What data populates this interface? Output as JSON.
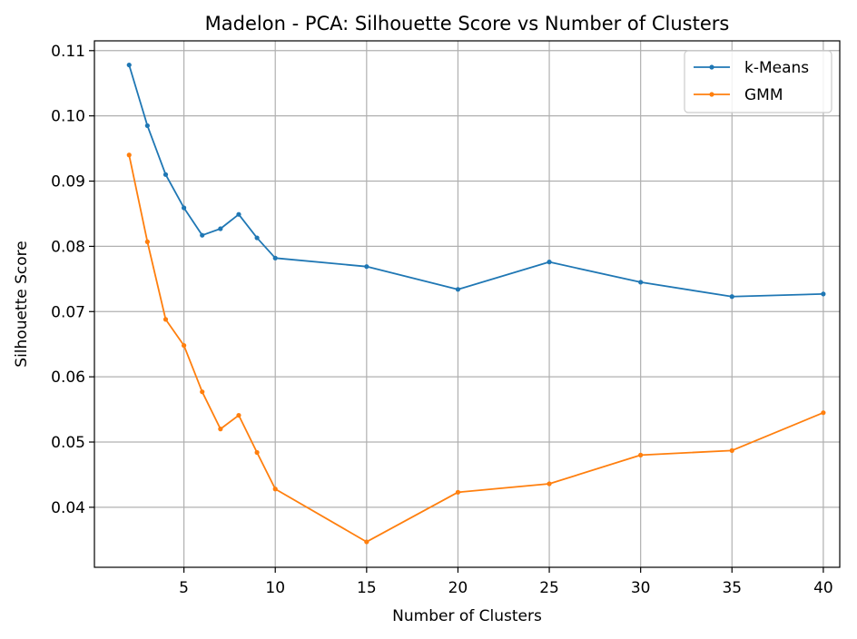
{
  "chart_data": {
    "type": "line",
    "title": "Madelon - PCA: Silhouette Score vs Number of Clusters",
    "xlabel": "Number of Clusters",
    "ylabel": "Silhouette Score",
    "xlim": [
      0.1,
      40.9
    ],
    "ylim": [
      0.0308,
      0.1115
    ],
    "x_ticks": [
      5,
      10,
      15,
      20,
      25,
      30,
      35,
      40
    ],
    "x_tick_labels": [
      "5",
      "10",
      "15",
      "20",
      "25",
      "30",
      "35",
      "40"
    ],
    "y_ticks": [
      0.04,
      0.05,
      0.06,
      0.07,
      0.08,
      0.09,
      0.1,
      0.11
    ],
    "y_tick_labels": [
      "0.04",
      "0.05",
      "0.06",
      "0.07",
      "0.08",
      "0.09",
      "0.10",
      "0.11"
    ],
    "grid": true,
    "legend_position": "top-right",
    "x": [
      2,
      3,
      4,
      5,
      6,
      7,
      8,
      9,
      10,
      15,
      20,
      25,
      30,
      35,
      40
    ],
    "series": [
      {
        "name": "k-Means",
        "color": "#1f77b4",
        "values": [
          0.1078,
          0.0985,
          0.091,
          0.0859,
          0.0817,
          0.0827,
          0.0849,
          0.0813,
          0.0782,
          0.0769,
          0.0734,
          0.0776,
          0.0745,
          0.0723,
          0.0727
        ]
      },
      {
        "name": "GMM",
        "color": "#ff7f0e",
        "values": [
          0.094,
          0.0807,
          0.0688,
          0.0648,
          0.0577,
          0.052,
          0.0541,
          0.0484,
          0.0428,
          0.0347,
          0.0423,
          0.0436,
          0.048,
          0.0487,
          0.0545
        ]
      }
    ]
  }
}
